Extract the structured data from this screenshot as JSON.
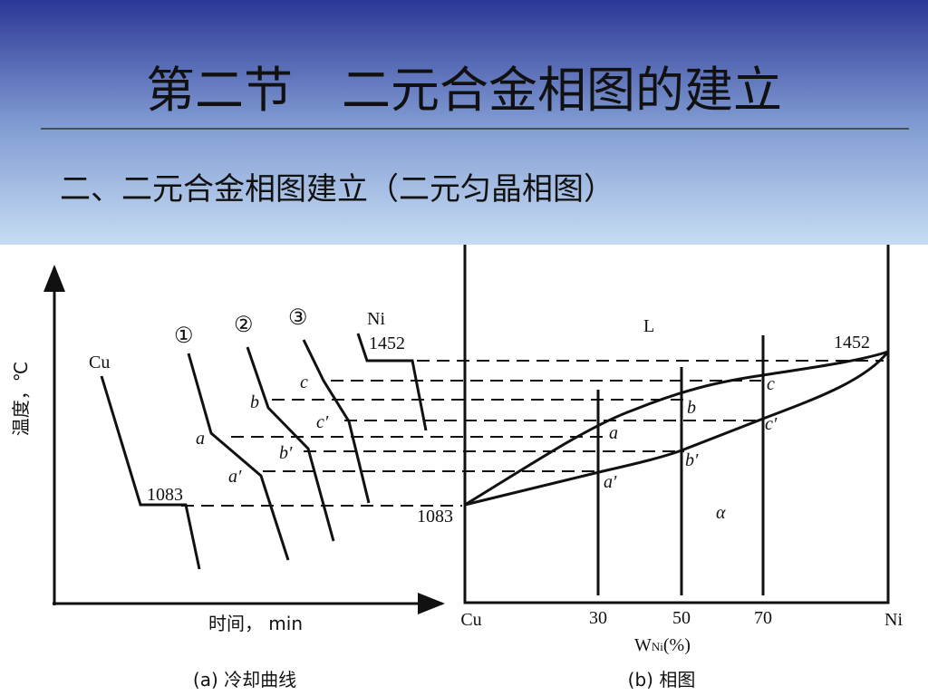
{
  "header": {
    "title": "第二节　二元合金相图的建立",
    "subtitle": "二、二元合金相图建立（二元匀晶相图）"
  },
  "cooling_curves": {
    "y_axis_label": "温度，℃",
    "x_axis_label": "时间，  min",
    "caption": "(a) 冷却曲线",
    "curve_labels": [
      "Cu",
      "①",
      "②",
      "③",
      "Ni"
    ],
    "temperature_labels": [
      "1083",
      "1452"
    ],
    "point_labels": [
      "a",
      "a′",
      "b",
      "b′",
      "c",
      "c′"
    ]
  },
  "phase_diagram": {
    "region_labels": [
      "L",
      "α"
    ],
    "temperature_labels": [
      "1452",
      "1083"
    ],
    "point_labels": [
      "a",
      "a′",
      "b",
      "b′",
      "c",
      "c′"
    ],
    "x_labels": [
      "Cu",
      "30",
      "50",
      "70",
      "Ni"
    ],
    "x_axis_label": {
      "symbol": "W",
      "subscript": "Ni",
      "unit": "(%)"
    },
    "caption": "(b) 相图"
  }
}
